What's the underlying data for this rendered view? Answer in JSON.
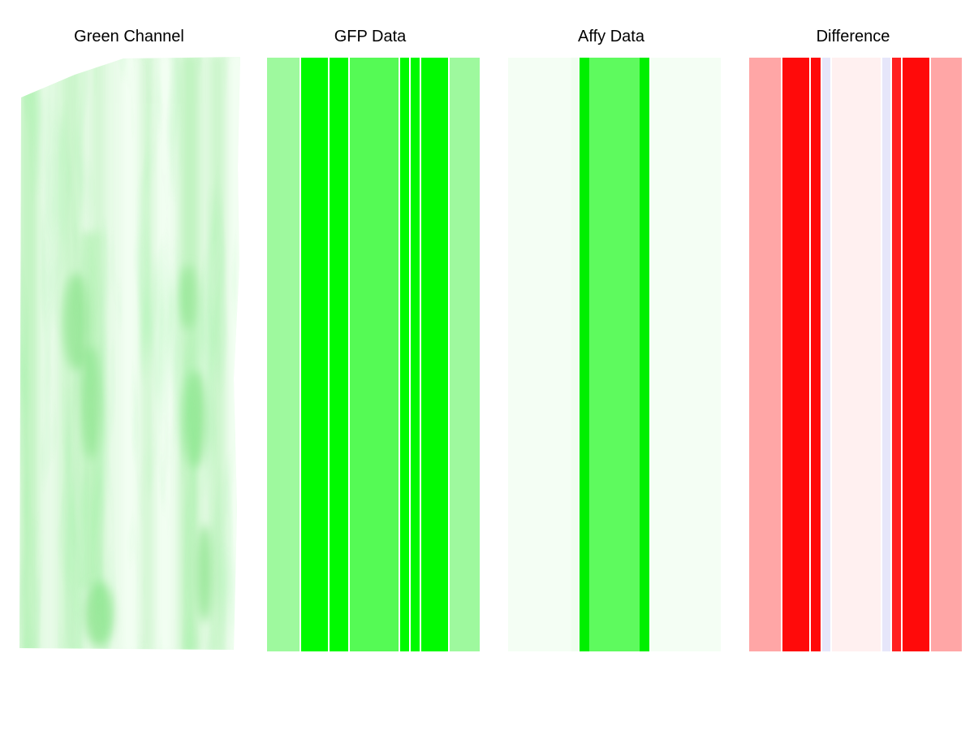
{
  "panels": [
    {
      "id": "green-channel",
      "title": "Green Channel",
      "kind": "micrograph"
    },
    {
      "id": "gfp-data",
      "title": "GFP Data",
      "kind": "strips",
      "strips": [
        {
          "color": "#9ef99e"
        },
        {
          "color": "#ffffff"
        },
        {
          "color": "#00fa00"
        },
        {
          "color": "#ffffff"
        },
        {
          "color": "#00fa00"
        },
        {
          "color": "#ffffff"
        },
        {
          "color": "#55fa55"
        },
        {
          "color": "#ffffff"
        },
        {
          "color": "#00fa00"
        },
        {
          "color": "#ffffff"
        },
        {
          "color": "#00fa00"
        },
        {
          "color": "#ffffff"
        },
        {
          "color": "#00fa00"
        },
        {
          "color": "#ffffff"
        },
        {
          "color": "#9ef99e"
        }
      ]
    },
    {
      "id": "affy-data",
      "title": "Affy Data",
      "kind": "strips",
      "strips": [
        {
          "color": "#f4fef4"
        },
        {
          "color": "#f0fdf0"
        },
        {
          "color": "#ffffff"
        },
        {
          "color": "#00f000"
        },
        {
          "color": "#ffffff"
        },
        {
          "color": "#5efa5e"
        },
        {
          "color": "#ffffff"
        },
        {
          "color": "#00f000"
        },
        {
          "color": "#ffffff"
        },
        {
          "color": "#f4fef4"
        }
      ]
    },
    {
      "id": "difference",
      "title": "Difference",
      "kind": "strips",
      "strips": [
        {
          "color": "#ffa6a6"
        },
        {
          "color": "#ffffff"
        },
        {
          "color": "#ff0a0a"
        },
        {
          "color": "#ffffff"
        },
        {
          "color": "#ff0a0a"
        },
        {
          "color": "#ffffff"
        },
        {
          "color": "#e6e6fa"
        },
        {
          "color": "#ffffff"
        },
        {
          "color": "#fff0f0"
        },
        {
          "color": "#ffffff"
        },
        {
          "color": "#e6e6fa"
        },
        {
          "color": "#ffffff"
        },
        {
          "color": "#ff2020"
        },
        {
          "color": "#ffffff"
        },
        {
          "color": "#ff0a0a"
        },
        {
          "color": "#ffffff"
        },
        {
          "color": "#ffa6a6"
        }
      ]
    }
  ]
}
